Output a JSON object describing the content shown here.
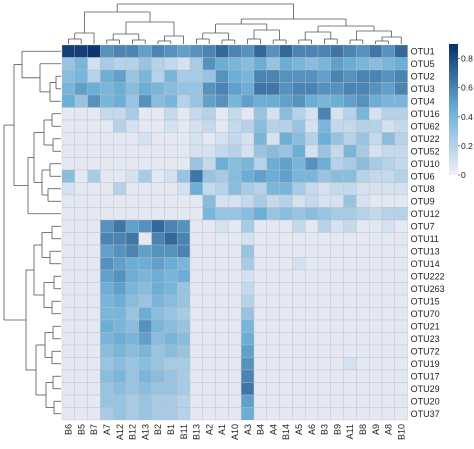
{
  "chart_data": {
    "type": "heatmap",
    "title": "",
    "xlabel": "",
    "ylabel": "",
    "columns": [
      "B6",
      "B5",
      "B7",
      "A7",
      "A12",
      "B12",
      "A13",
      "B2",
      "B1",
      "B11",
      "B13",
      "A2",
      "A1",
      "A10",
      "A3",
      "B4",
      "A4",
      "B14",
      "A5",
      "A6",
      "B3",
      "B9",
      "A11",
      "B8",
      "A9",
      "A8",
      "B10"
    ],
    "rows": [
      "OTU1",
      "OTU5",
      "OTU2",
      "OTU3",
      "OTU4",
      "OTU16",
      "OTU62",
      "OTU22",
      "OTU52",
      "OTU10",
      "OTU6",
      "OTU8",
      "OTU9",
      "OTU12",
      "OTU7",
      "OTU11",
      "OTU13",
      "OTU14",
      "OTU222",
      "OTU263",
      "OTU15",
      "OTU70",
      "OTU21",
      "OTU23",
      "OTU72",
      "OTU19",
      "OTU17",
      "OTU29",
      "OTU20",
      "OTU37"
    ],
    "values": [
      [
        0.85,
        0.85,
        0.88,
        0.55,
        0.6,
        0.6,
        0.5,
        0.6,
        0.55,
        0.5,
        0.55,
        0.6,
        0.7,
        0.6,
        0.55,
        0.7,
        0.55,
        0.7,
        0.6,
        0.6,
        0.6,
        0.65,
        0.6,
        0.55,
        0.65,
        0.55,
        0.7
      ],
      [
        0.3,
        0.4,
        0.1,
        0.25,
        0.2,
        0.2,
        0.3,
        0.2,
        0.15,
        0.1,
        0.25,
        0.55,
        0.45,
        0.4,
        0.35,
        0.45,
        0.3,
        0.45,
        0.4,
        0.35,
        0.4,
        0.5,
        0.45,
        0.4,
        0.35,
        0.4,
        0.45
      ],
      [
        0.35,
        0.4,
        0.2,
        0.45,
        0.5,
        0.3,
        0.4,
        0.2,
        0.4,
        0.25,
        0.25,
        0.3,
        0.55,
        0.45,
        0.4,
        0.6,
        0.6,
        0.55,
        0.55,
        0.55,
        0.5,
        0.6,
        0.55,
        0.6,
        0.6,
        0.55,
        0.6
      ],
      [
        0.4,
        0.5,
        0.45,
        0.4,
        0.45,
        0.35,
        0.45,
        0.4,
        0.35,
        0.3,
        0.3,
        0.55,
        0.6,
        0.5,
        0.45,
        0.65,
        0.65,
        0.55,
        0.6,
        0.6,
        0.55,
        0.55,
        0.6,
        0.6,
        0.55,
        0.5,
        0.6
      ],
      [
        0.45,
        0.3,
        0.55,
        0.4,
        0.45,
        0.3,
        0.55,
        0.35,
        0.4,
        0.2,
        0.3,
        0.5,
        0.55,
        0.4,
        0.5,
        0.45,
        0.45,
        0.5,
        0.55,
        0.45,
        0.4,
        0.45,
        0.5,
        0.55,
        0.45,
        0.4,
        0.4
      ],
      [
        0.05,
        0.05,
        0.05,
        0.15,
        0.15,
        0.25,
        0.05,
        0.05,
        0.15,
        0.05,
        0.15,
        0.2,
        0.05,
        0.15,
        0.05,
        0.3,
        0.1,
        0.35,
        0.2,
        0.1,
        0.6,
        0.1,
        0.2,
        0.4,
        0.1,
        0.2,
        0.2
      ],
      [
        0.05,
        0.05,
        0.05,
        0.05,
        0.2,
        0.1,
        0.05,
        0.05,
        0.1,
        0.05,
        0.1,
        0.15,
        0.05,
        0.15,
        0.2,
        0.35,
        0.2,
        0.2,
        0.3,
        0.1,
        0.4,
        0.15,
        0.15,
        0.2,
        0.2,
        0.1,
        0.15
      ],
      [
        0.05,
        0.05,
        0.05,
        0.05,
        0.05,
        0.05,
        0.1,
        0.05,
        0.05,
        0.05,
        0.1,
        0.05,
        0.1,
        0.15,
        0.1,
        0.4,
        0.1,
        0.45,
        0.35,
        0.2,
        0.45,
        0.3,
        0.2,
        0.3,
        0.15,
        0.35,
        0.2
      ],
      [
        0.05,
        0.05,
        0.05,
        0.05,
        0.05,
        0.05,
        0.05,
        0.05,
        0.05,
        0.05,
        0.1,
        0.1,
        0.15,
        0.2,
        0.1,
        0.3,
        0.35,
        0.3,
        0.45,
        0.1,
        0.3,
        0.15,
        0.4,
        0.25,
        0.1,
        0.15,
        0.15
      ],
      [
        0.05,
        0.05,
        0.05,
        0.05,
        0.05,
        0.05,
        0.05,
        0.05,
        0.05,
        0.05,
        0.3,
        0.15,
        0.45,
        0.35,
        0.4,
        0.2,
        0.45,
        0.5,
        0.4,
        0.55,
        0.45,
        0.2,
        0.25,
        0.35,
        0.25,
        0.2,
        0.15
      ],
      [
        0.35,
        0.05,
        0.25,
        0.05,
        0.05,
        0.1,
        0.25,
        0.05,
        0.1,
        0.3,
        0.65,
        0.3,
        0.25,
        0.35,
        0.45,
        0.5,
        0.45,
        0.5,
        0.4,
        0.4,
        0.3,
        0.35,
        0.35,
        0.2,
        0.15,
        0.15,
        0.2
      ],
      [
        0.1,
        0.05,
        0.05,
        0.05,
        0.2,
        0.05,
        0.05,
        0.05,
        0.05,
        0.1,
        0.45,
        0.15,
        0.2,
        0.35,
        0.25,
        0.2,
        0.4,
        0.4,
        0.25,
        0.15,
        0.1,
        0.15,
        0.15,
        0.1,
        0.1,
        0.1,
        0.1
      ],
      [
        0.05,
        0.05,
        0.05,
        0.05,
        0.05,
        0.05,
        0.05,
        0.05,
        0.05,
        0.05,
        0.05,
        0.35,
        0.1,
        0.1,
        0.15,
        0.25,
        0.15,
        0.2,
        0.1,
        0.15,
        0.1,
        0.1,
        0.3,
        0.1,
        0.05,
        0.05,
        0.05
      ],
      [
        0.05,
        0.05,
        0.05,
        0.05,
        0.05,
        0.05,
        0.05,
        0.05,
        0.05,
        0.05,
        0.05,
        0.4,
        0.3,
        0.3,
        0.35,
        0.45,
        0.3,
        0.35,
        0.3,
        0.35,
        0.3,
        0.25,
        0.25,
        0.2,
        0.15,
        0.2,
        0.2
      ],
      [
        0.05,
        0.05,
        0.05,
        0.55,
        0.65,
        0.5,
        0.55,
        0.7,
        0.6,
        0.55,
        0.05,
        0.05,
        0.1,
        0.05,
        0.25,
        0.05,
        0.05,
        0.05,
        0.15,
        0.05,
        0.2,
        0.1,
        0.15,
        0.05,
        0.05,
        0.1,
        0.05
      ],
      [
        0.05,
        0.05,
        0.05,
        0.6,
        0.6,
        0.65,
        0.05,
        0.6,
        0.7,
        0.6,
        0.05,
        0.05,
        0.05,
        0.05,
        0.1,
        0.05,
        0.05,
        0.05,
        0.05,
        0.05,
        0.05,
        0.05,
        0.05,
        0.05,
        0.05,
        0.05,
        0.05
      ],
      [
        0.05,
        0.05,
        0.05,
        0.5,
        0.55,
        0.6,
        0.5,
        0.55,
        0.55,
        0.6,
        0.05,
        0.05,
        0.05,
        0.05,
        0.3,
        0.05,
        0.05,
        0.05,
        0.05,
        0.05,
        0.05,
        0.05,
        0.05,
        0.05,
        0.05,
        0.05,
        0.05
      ],
      [
        0.05,
        0.05,
        0.05,
        0.55,
        0.5,
        0.45,
        0.45,
        0.5,
        0.45,
        0.4,
        0.05,
        0.05,
        0.05,
        0.05,
        0.25,
        0.05,
        0.05,
        0.05,
        0.1,
        0.05,
        0.05,
        0.05,
        0.05,
        0.05,
        0.05,
        0.05,
        0.05
      ],
      [
        0.05,
        0.05,
        0.05,
        0.5,
        0.55,
        0.45,
        0.4,
        0.45,
        0.4,
        0.45,
        0.05,
        0.05,
        0.05,
        0.05,
        0.1,
        0.05,
        0.05,
        0.05,
        0.05,
        0.05,
        0.05,
        0.05,
        0.05,
        0.05,
        0.05,
        0.05,
        0.05
      ],
      [
        0.05,
        0.05,
        0.05,
        0.45,
        0.5,
        0.4,
        0.35,
        0.45,
        0.4,
        0.3,
        0.05,
        0.05,
        0.05,
        0.05,
        0.15,
        0.05,
        0.05,
        0.05,
        0.05,
        0.05,
        0.05,
        0.05,
        0.05,
        0.05,
        0.05,
        0.05,
        0.05
      ],
      [
        0.05,
        0.05,
        0.05,
        0.4,
        0.45,
        0.35,
        0.3,
        0.4,
        0.35,
        0.3,
        0.05,
        0.05,
        0.05,
        0.05,
        0.2,
        0.05,
        0.05,
        0.05,
        0.05,
        0.05,
        0.05,
        0.05,
        0.05,
        0.05,
        0.05,
        0.05,
        0.05
      ],
      [
        0.05,
        0.05,
        0.05,
        0.4,
        0.4,
        0.3,
        0.45,
        0.35,
        0.3,
        0.25,
        0.05,
        0.05,
        0.05,
        0.05,
        0.3,
        0.05,
        0.05,
        0.05,
        0.05,
        0.05,
        0.05,
        0.05,
        0.05,
        0.05,
        0.05,
        0.05,
        0.05
      ],
      [
        0.05,
        0.05,
        0.05,
        0.45,
        0.4,
        0.35,
        0.55,
        0.4,
        0.35,
        0.3,
        0.05,
        0.05,
        0.05,
        0.05,
        0.4,
        0.05,
        0.05,
        0.05,
        0.05,
        0.05,
        0.05,
        0.05,
        0.05,
        0.05,
        0.05,
        0.05,
        0.05
      ],
      [
        0.05,
        0.05,
        0.05,
        0.4,
        0.45,
        0.4,
        0.5,
        0.35,
        0.4,
        0.35,
        0.05,
        0.05,
        0.05,
        0.05,
        0.45,
        0.05,
        0.05,
        0.05,
        0.05,
        0.05,
        0.05,
        0.05,
        0.05,
        0.05,
        0.05,
        0.05,
        0.05
      ],
      [
        0.05,
        0.05,
        0.05,
        0.35,
        0.4,
        0.35,
        0.4,
        0.3,
        0.35,
        0.3,
        0.05,
        0.05,
        0.05,
        0.05,
        0.5,
        0.05,
        0.05,
        0.05,
        0.05,
        0.05,
        0.05,
        0.05,
        0.05,
        0.05,
        0.05,
        0.05,
        0.05
      ],
      [
        0.05,
        0.05,
        0.05,
        0.3,
        0.35,
        0.3,
        0.35,
        0.3,
        0.25,
        0.25,
        0.05,
        0.05,
        0.05,
        0.05,
        0.55,
        0.05,
        0.05,
        0.05,
        0.05,
        0.05,
        0.05,
        0.05,
        0.1,
        0.05,
        0.05,
        0.05,
        0.05
      ],
      [
        0.05,
        0.05,
        0.05,
        0.35,
        0.4,
        0.3,
        0.4,
        0.35,
        0.3,
        0.25,
        0.05,
        0.05,
        0.05,
        0.05,
        0.6,
        0.05,
        0.05,
        0.05,
        0.05,
        0.05,
        0.05,
        0.05,
        0.05,
        0.05,
        0.05,
        0.05,
        0.05
      ],
      [
        0.05,
        0.05,
        0.05,
        0.3,
        0.35,
        0.3,
        0.35,
        0.3,
        0.3,
        0.25,
        0.05,
        0.05,
        0.05,
        0.05,
        0.65,
        0.05,
        0.05,
        0.05,
        0.05,
        0.05,
        0.05,
        0.05,
        0.05,
        0.05,
        0.05,
        0.05,
        0.05
      ],
      [
        0.05,
        0.05,
        0.05,
        0.3,
        0.3,
        0.25,
        0.3,
        0.25,
        0.25,
        0.2,
        0.05,
        0.05,
        0.05,
        0.05,
        0.5,
        0.05,
        0.05,
        0.05,
        0.05,
        0.05,
        0.05,
        0.05,
        0.05,
        0.05,
        0.05,
        0.05,
        0.05
      ],
      [
        0.05,
        0.05,
        0.05,
        0.25,
        0.3,
        0.25,
        0.3,
        0.25,
        0.25,
        0.2,
        0.05,
        0.05,
        0.05,
        0.05,
        0.45,
        0.05,
        0.05,
        0.05,
        0.05,
        0.05,
        0.05,
        0.05,
        0.05,
        0.05,
        0.05,
        0.05,
        0.05
      ]
    ],
    "colorscale": {
      "min": 0,
      "max": 0.9,
      "low_color": "#f2eff7",
      "high_color": "#08306b",
      "ticks": [
        0,
        0.2,
        0.4,
        0.6,
        0.8
      ],
      "tick_labels": [
        "0",
        "0.2",
        "0.4",
        "0.6",
        "0.8"
      ]
    },
    "dendrograms": {
      "rows": true,
      "columns": true
    }
  }
}
